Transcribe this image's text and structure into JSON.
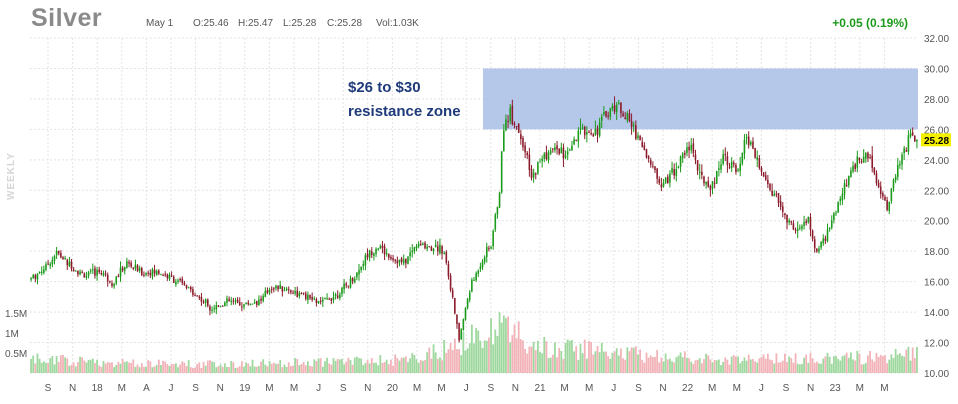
{
  "header": {
    "title": "Silver",
    "date": "May 1",
    "open": "O:25.46",
    "high": "H:25.47",
    "low": "L:25.28",
    "close": "C:25.28",
    "volume": "Vol:1.03K",
    "change": "+0.05 (0.19%)"
  },
  "side_label": "WEEKLY",
  "annotation": {
    "line1": "$26 to $30",
    "line2": "resistance zone"
  },
  "colors": {
    "up": "#1b9a1b",
    "down": "#8b1a2b",
    "zone": "#b6c8ea",
    "annotation_text": "#1f3a7a",
    "last_price_bg": "#f5f000"
  },
  "chart_data": {
    "type": "candlestick",
    "last_price": "25.28",
    "zone": {
      "low": 26,
      "high": 30
    },
    "ylim": [
      10,
      32
    ],
    "y_ticks": [
      "10.00",
      "12.00",
      "14.00",
      "16.00",
      "18.00",
      "20.00",
      "22.00",
      "24.00",
      "26.00",
      "28.00",
      "30.00",
      "32.00"
    ],
    "volume_ticks": [
      "0.5M",
      "1M",
      "1.5M"
    ],
    "x_ticks": [
      "S",
      "N",
      "18",
      "M",
      "A",
      "J",
      "S",
      "N",
      "19",
      "M",
      "M",
      "J",
      "S",
      "N",
      "20",
      "M",
      "M",
      "J",
      "S",
      "N",
      "21",
      "M",
      "M",
      "J",
      "S",
      "N",
      "22",
      "M",
      "M",
      "J",
      "S",
      "N",
      "23",
      "M",
      "M"
    ],
    "price_path": [
      [
        0,
        16.2
      ],
      [
        7,
        17.0
      ],
      [
        12,
        17.9
      ],
      [
        18,
        17.1
      ],
      [
        25,
        16.4
      ],
      [
        33,
        16.7
      ],
      [
        38,
        15.9
      ],
      [
        45,
        17.2
      ],
      [
        52,
        16.6
      ],
      [
        60,
        16.6
      ],
      [
        68,
        16.1
      ],
      [
        75,
        15.4
      ],
      [
        80,
        14.8
      ],
      [
        85,
        14.3
      ],
      [
        93,
        14.7
      ],
      [
        100,
        14.5
      ],
      [
        108,
        14.8
      ],
      [
        113,
        15.7
      ],
      [
        120,
        15.5
      ],
      [
        127,
        15.1
      ],
      [
        136,
        14.6
      ],
      [
        145,
        15.3
      ],
      [
        152,
        16.3
      ],
      [
        158,
        17.8
      ],
      [
        163,
        18.3
      ],
      [
        169,
        17.6
      ],
      [
        175,
        17.2
      ],
      [
        181,
        18.4
      ],
      [
        188,
        18.3
      ],
      [
        194,
        18.1
      ],
      [
        198,
        14.8
      ],
      [
        201,
        12.2
      ],
      [
        206,
        15.5
      ],
      [
        212,
        17.5
      ],
      [
        216,
        18.4
      ],
      [
        220,
        22.0
      ],
      [
        222,
        26.3
      ],
      [
        225,
        27.2
      ],
      [
        230,
        25.6
      ],
      [
        235,
        22.7
      ],
      [
        240,
        24.2
      ],
      [
        247,
        24.7
      ],
      [
        252,
        24.2
      ],
      [
        258,
        25.9
      ],
      [
        265,
        25.9
      ],
      [
        270,
        27.0
      ],
      [
        275,
        27.7
      ],
      [
        280,
        26.7
      ],
      [
        285,
        25.6
      ],
      [
        290,
        24.0
      ],
      [
        295,
        22.6
      ],
      [
        300,
        22.9
      ],
      [
        305,
        24.0
      ],
      [
        310,
        25.1
      ],
      [
        314,
        22.8
      ],
      [
        320,
        22.3
      ],
      [
        325,
        24.4
      ],
      [
        332,
        23.0
      ],
      [
        336,
        25.6
      ],
      [
        340,
        24.2
      ],
      [
        345,
        22.5
      ],
      [
        350,
        21.5
      ],
      [
        355,
        20.0
      ],
      [
        360,
        19.3
      ],
      [
        365,
        20.1
      ],
      [
        368,
        18.0
      ],
      [
        373,
        18.7
      ],
      [
        378,
        20.7
      ],
      [
        383,
        22.5
      ],
      [
        388,
        24.0
      ],
      [
        394,
        24.2
      ],
      [
        398,
        22.2
      ],
      [
        402,
        20.9
      ],
      [
        405,
        22.5
      ],
      [
        409,
        24.1
      ],
      [
        413,
        25.6
      ],
      [
        416,
        25.3
      ]
    ],
    "volume_path": [
      [
        0,
        0.35
      ],
      [
        40,
        0.25
      ],
      [
        90,
        0.22
      ],
      [
        140,
        0.28
      ],
      [
        180,
        0.35
      ],
      [
        200,
        0.7
      ],
      [
        220,
        1.1
      ],
      [
        225,
        1.35
      ],
      [
        235,
        0.65
      ],
      [
        270,
        0.55
      ],
      [
        320,
        0.32
      ],
      [
        360,
        0.35
      ],
      [
        400,
        0.4
      ],
      [
        416,
        0.55
      ]
    ]
  }
}
